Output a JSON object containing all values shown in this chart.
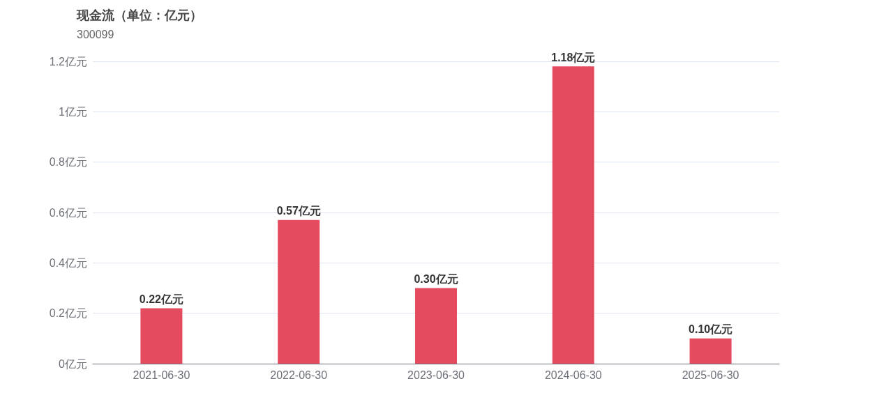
{
  "chart_data": {
    "type": "bar",
    "title": "现金流（单位：亿元）",
    "subtitle": "300099",
    "categories": [
      "2021-06-30",
      "2022-06-30",
      "2023-06-30",
      "2024-06-30",
      "2025-06-30"
    ],
    "values": [
      0.22,
      0.57,
      0.3,
      1.18,
      0.1
    ],
    "value_labels": [
      "0.22亿元",
      "0.57亿元",
      "0.30亿元",
      "1.18亿元",
      "0.10亿元"
    ],
    "color": "#e54b5e",
    "ylim": [
      0,
      1.2
    ],
    "yticks": [
      {
        "value": 0,
        "label": "0亿元"
      },
      {
        "value": 0.2,
        "label": "0.2亿元"
      },
      {
        "value": 0.4,
        "label": "0.4亿元"
      },
      {
        "value": 0.6,
        "label": "0.6亿元"
      },
      {
        "value": 0.8,
        "label": "0.8亿元"
      },
      {
        "value": 1,
        "label": "1亿元"
      },
      {
        "value": 1.2,
        "label": "1.2亿元"
      }
    ],
    "grid": "y"
  }
}
